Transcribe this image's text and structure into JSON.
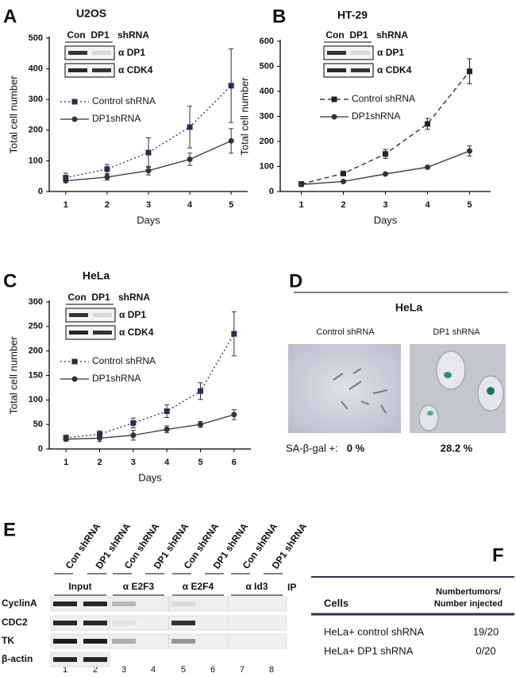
{
  "chart_data": [
    {
      "type": "line",
      "panel": "A",
      "title": "U2OS",
      "x_label": "Days",
      "y_label": "Total cell number",
      "x": [
        1,
        2,
        3,
        4,
        5
      ],
      "xlim": [
        0.6,
        5.4
      ],
      "xticks": [
        1,
        2,
        3,
        4,
        5
      ],
      "ylim": [
        0,
        500
      ],
      "yticks": [
        0,
        100,
        200,
        300,
        400,
        500
      ],
      "series": [
        {
          "name": "Control shRNA",
          "color": "#2b2b55",
          "line_style": "dotted",
          "marker": "square",
          "values": [
            45,
            73,
            127,
            210,
            345
          ],
          "errors": [
            15,
            15,
            48,
            68,
            120
          ]
        },
        {
          "name": "DP1shRNA",
          "color": "#333333",
          "line_style": "solid",
          "marker": "circle",
          "values": [
            35,
            47,
            68,
            105,
            165
          ],
          "errors": [
            6,
            10,
            14,
            20,
            40
          ]
        }
      ],
      "inset": {
        "columns": [
          "Con",
          "DP1"
        ],
        "label": "shRNA",
        "rows": [
          "α DP1",
          "α CDK4"
        ]
      }
    },
    {
      "type": "line",
      "panel": "B",
      "title": "HT-29",
      "x_label": "Days",
      "y_label": "Total cell number",
      "x": [
        1,
        2,
        3,
        4,
        5
      ],
      "xlim": [
        0.5,
        5.5
      ],
      "xticks": [
        1,
        2,
        3,
        4,
        5
      ],
      "ylim": [
        0,
        600
      ],
      "yticks": [
        0,
        100,
        200,
        300,
        400,
        500,
        600
      ],
      "series": [
        {
          "name": "Control shRNA",
          "color": "#222222",
          "line_style": "dashed",
          "marker": "square",
          "values": [
            30,
            72,
            150,
            270,
            480
          ],
          "errors": [
            3,
            5,
            18,
            22,
            50
          ]
        },
        {
          "name": "DP1shRNA",
          "color": "#333333",
          "line_style": "solid",
          "marker": "circle",
          "values": [
            28,
            40,
            70,
            97,
            162
          ],
          "errors": [
            2,
            3,
            4,
            5,
            20
          ]
        }
      ],
      "inset": {
        "columns": [
          "Con",
          "DP1"
        ],
        "label": "shRNA",
        "rows": [
          "α DP1",
          "α CDK4"
        ]
      }
    },
    {
      "type": "line",
      "panel": "C",
      "title": "HeLa",
      "x_label": "Days",
      "y_label": "Total cell number",
      "x": [
        1,
        2,
        3,
        4,
        5,
        6
      ],
      "xlim": [
        0.5,
        6.5
      ],
      "xticks": [
        1,
        2,
        3,
        4,
        5,
        6
      ],
      "ylim": [
        0,
        300
      ],
      "yticks": [
        0,
        50,
        100,
        150,
        200,
        250,
        300
      ],
      "series": [
        {
          "name": "Control shRNA",
          "color": "#2b2b55",
          "line_style": "dotted",
          "marker": "square",
          "values": [
            23,
            30,
            53,
            77,
            118,
            235
          ],
          "errors": [
            5,
            7,
            10,
            13,
            17,
            45
          ]
        },
        {
          "name": "DP1shRNA",
          "color": "#333333",
          "line_style": "solid",
          "marker": "circle",
          "values": [
            20,
            22,
            28,
            40,
            50,
            70
          ],
          "errors": [
            4,
            7,
            10,
            7,
            6,
            10
          ]
        }
      ],
      "inset": {
        "columns": [
          "Con",
          "DP1"
        ],
        "label": "shRNA",
        "rows": [
          "α DP1",
          "α CDK4"
        ]
      }
    }
  ],
  "panel_d": {
    "label": "D",
    "title": "HeLa",
    "columns": [
      "Control shRNA",
      "DP1 shRNA"
    ],
    "stain_label": "SA-β-gal +:",
    "stain_values": [
      "0 %",
      "28.2 %"
    ]
  },
  "panel_e": {
    "label": "E",
    "lanes": [
      "Con shRNA",
      "DP1 shRNA",
      "Con shRNA",
      "DP1 shRNA",
      "Con shRNA",
      "DP1 shRNA",
      "Con shRNA",
      "DP1 shRNA"
    ],
    "groups": [
      "Input",
      "α E2F3",
      "α E2F4",
      "α Id3"
    ],
    "ip_label": "IP",
    "rows": [
      "CyclinA",
      "CDC2",
      "TK",
      "β-actin"
    ],
    "lane_numbers": [
      "1",
      "2",
      "3",
      "4",
      "5",
      "6",
      "7",
      "8"
    ]
  },
  "panel_f": {
    "label": "F",
    "header": [
      "Cells",
      "Numbertumors/",
      "Number injected"
    ],
    "rows": [
      [
        "HeLa+ control shRNA",
        "19/20"
      ],
      [
        "HeLa+ DP1 shRNA",
        "0/20"
      ]
    ]
  }
}
